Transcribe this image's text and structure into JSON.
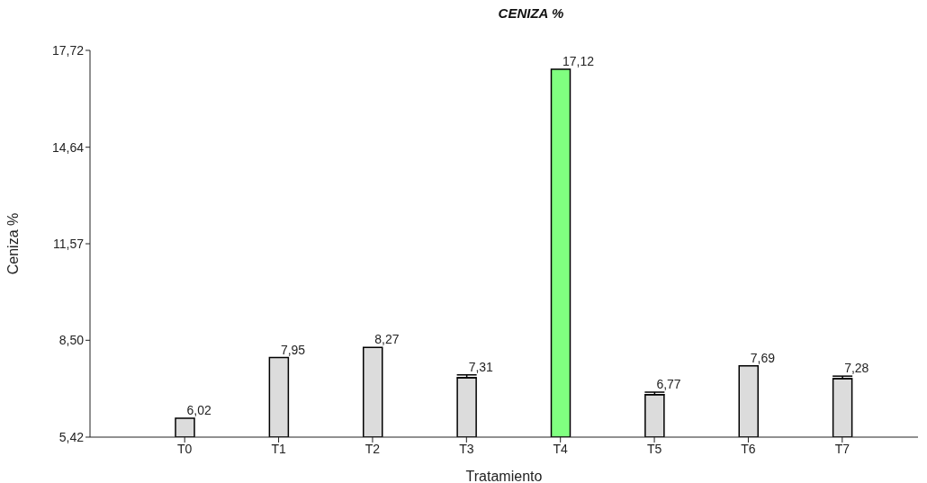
{
  "chart_data": {
    "type": "bar",
    "title": "CENIZA %",
    "xlabel": "Tratamiento",
    "ylabel": "Ceniza %",
    "categories": [
      "T0",
      "T1",
      "T2",
      "T3",
      "T4",
      "T5",
      "T6",
      "T7"
    ],
    "values": [
      6.02,
      7.95,
      8.27,
      7.31,
      17.12,
      6.77,
      7.69,
      7.28
    ],
    "errors": [
      null,
      null,
      null,
      [
        7.31,
        7.4
      ],
      null,
      [
        6.77,
        6.85
      ],
      null,
      [
        7.28,
        7.36
      ]
    ],
    "value_labels": [
      "6,02",
      "7,95",
      "8,27",
      "7,31",
      "17,12",
      "6,77",
      "7,69",
      "7,28"
    ],
    "colors": [
      "#dcdcdc",
      "#dcdcdc",
      "#dcdcdc",
      "#dcdcdc",
      "#80ff80",
      "#dcdcdc",
      "#dcdcdc",
      "#dcdcdc"
    ],
    "ylim": [
      5.42,
      17.72
    ],
    "yticks": [
      {
        "value": 5.42,
        "label": "5,42"
      },
      {
        "value": 8.5,
        "label": "8,50"
      },
      {
        "value": 11.57,
        "label": "11,57"
      },
      {
        "value": 14.64,
        "label": "14,64"
      },
      {
        "value": 17.72,
        "label": "17,72"
      }
    ]
  }
}
